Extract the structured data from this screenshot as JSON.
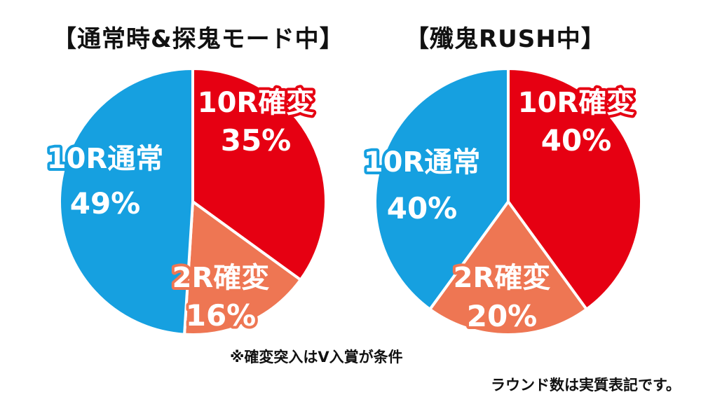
{
  "colors": {
    "kakuhen10": "#e60012",
    "kakuhen2": "#ee7653",
    "tsujo10": "#16a0e0",
    "text": "#111111",
    "label_text": "#ffffff"
  },
  "chart_data": [
    {
      "type": "pie",
      "title": "【通常時&探鬼モード中】",
      "slices": [
        {
          "name": "10R確変",
          "value": 35,
          "label": "35%",
          "color": "#e60012"
        },
        {
          "name": "2R確変",
          "value": 16,
          "label": "16%",
          "color": "#ee7653"
        },
        {
          "name": "10R通常",
          "value": 49,
          "label": "49%",
          "color": "#16a0e0"
        }
      ]
    },
    {
      "type": "pie",
      "title": "【殲鬼RUSH中】",
      "slices": [
        {
          "name": "10R確変",
          "value": 40,
          "label": "40%",
          "color": "#e60012"
        },
        {
          "name": "2R確変",
          "value": 20,
          "label": "20%",
          "color": "#ee7653"
        },
        {
          "name": "10R通常",
          "value": 40,
          "label": "40%",
          "color": "#16a0e0"
        }
      ]
    }
  ],
  "notes": {
    "line1": "※確変突入はV入賞が条件",
    "line2": "ラウンド数は実質表記です。"
  }
}
